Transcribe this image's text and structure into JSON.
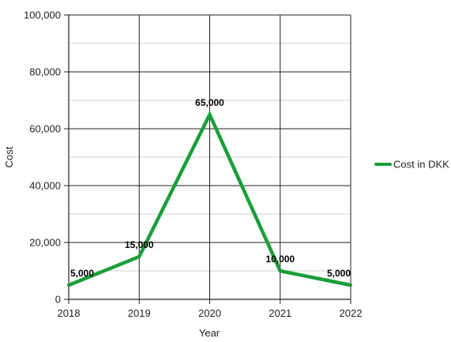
{
  "chart_data": {
    "type": "line",
    "categories": [
      "2018",
      "2019",
      "2020",
      "2021",
      "2022"
    ],
    "series": [
      {
        "name": "Cost in DKK",
        "values": [
          5000,
          15000,
          65000,
          10000,
          5000
        ],
        "color": "#1a9e3a"
      }
    ],
    "data_labels": [
      "5,000",
      "15,000",
      "65,000",
      "10,000",
      "5,000"
    ],
    "xlabel": "Year",
    "ylabel": "Cost",
    "ylim": [
      0,
      100000
    ],
    "yticks": [
      0,
      20000,
      40000,
      60000,
      80000,
      100000
    ],
    "ytick_labels": [
      "0",
      "20,000",
      "40,000",
      "60,000",
      "80,000",
      "100,000"
    ],
    "minor_grid_step": 10000,
    "grid": true,
    "legend_position": "right"
  }
}
